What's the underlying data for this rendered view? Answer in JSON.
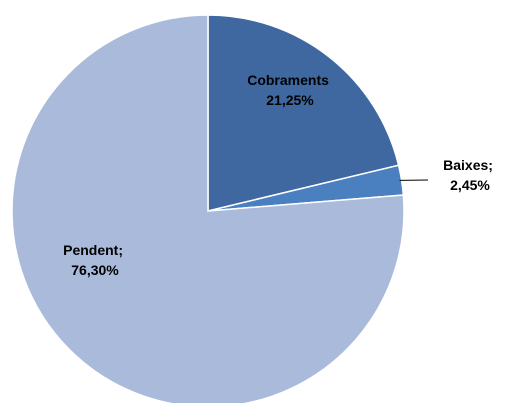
{
  "chart_data": {
    "type": "pie",
    "slices": [
      {
        "label": "Cobraments",
        "value": 21.25,
        "display": "21,25%",
        "color": "#3e689f"
      },
      {
        "label": "Baixes",
        "value": 2.45,
        "display": "2,45%",
        "color": "#4a7fc0"
      },
      {
        "label": "Pendent",
        "value": 76.3,
        "display": "76,30%",
        "color": "#a9badb"
      }
    ],
    "data_labels": [
      {
        "line1": "Cobraments",
        "line2": "21,25%",
        "color": "#ffffff"
      },
      {
        "line1": "Baixes;",
        "line2": "2,45%",
        "color": "#000000"
      },
      {
        "line1": "Pendent;",
        "line2": "76,30%",
        "color": "#000000"
      }
    ],
    "start": "12 o'clock",
    "direction": "clockwise",
    "legend": "none"
  }
}
